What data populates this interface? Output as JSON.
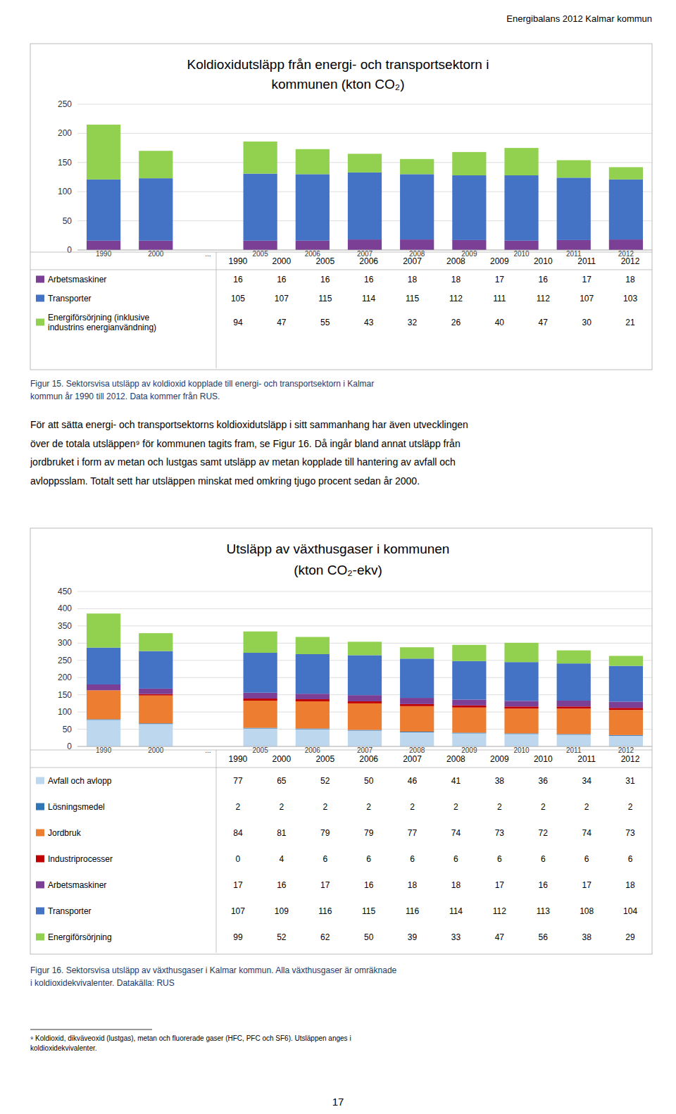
{
  "page_header": "Energibalans 2012 Kalmar kommun",
  "body_text": "För att sätta energi- och transportsektorns koldioxidutsläpp i sitt sammanhang har även utvecklingen\növer de totala utsläppen⁹ för kommunen tagits fram, se Figur 16. Då ingår bland annat utsläpp från\njordbruket i form av metan och lustgas samt utsläpp av metan kopplade till hantering av avfall och\navloppsslam. Totalt sett har utsläppen minskat med omkring tjugo procent sedan år 2000.",
  "footnote": "⁹ Koldioxid, dikväveoxid (lustgas), metan och fluorerade gaser (HFC, PFC och SF6). Utsläppen anges i\nkoldioxidekvivalenter.",
  "page_number": "17",
  "chart_data": [
    {
      "type": "bar",
      "stacked": true,
      "grid": true,
      "legend": "bottom",
      "title": "Koldioxidutsläpp från energi- och transportsektorn i\nkommunen (kton CO₂)",
      "annotations": [
        "Figur 15. Sektorsvisa utsläpp av koldioxid kopplade till energi- och transportsektorn i Kalmar\nkommun år 1990 till 2012. Data kommer från RUS."
      ],
      "categories": [
        "1990",
        "2000",
        "...",
        "2005",
        "2006",
        "2007",
        "2008",
        "2009",
        "2010",
        "2011",
        "2012"
      ],
      "series": [
        {
          "name": "Arbetsmaskiner",
          "color": "#7B3F96",
          "values": [
            16,
            16,
            null,
            16,
            16,
            18,
            18,
            17,
            16,
            17,
            18
          ]
        },
        {
          "name": "Transporter",
          "color": "#4472C4",
          "values": [
            105,
            107,
            null,
            115,
            114,
            115,
            112,
            111,
            112,
            107,
            103
          ]
        },
        {
          "name": "Energiförsörjning (inklusive\nindustrins energianvändning)",
          "color": "#92D050",
          "values": [
            94,
            47,
            null,
            55,
            43,
            32,
            26,
            40,
            47,
            30,
            21
          ]
        }
      ],
      "ylim": [
        0,
        250
      ],
      "yticks": [
        0,
        50,
        100,
        150,
        200,
        250
      ]
    },
    {
      "type": "bar",
      "stacked": true,
      "grid": true,
      "legend": "bottom",
      "title": "Utsläpp av växthusgaser i kommunen\n(kton CO₂-ekv)",
      "annotations": [
        "Figur 16. Sektorsvisa utsläpp av växthusgaser i Kalmar kommun. Alla växthusgaser är omräknade\ni koldioxidekvivalenter. Datakälla: RUS"
      ],
      "categories": [
        "1990",
        "2000",
        "...",
        "2005",
        "2006",
        "2007",
        "2008",
        "2009",
        "2010",
        "2011",
        "2012"
      ],
      "series": [
        {
          "name": "Avfall och avlopp",
          "color": "#BDD7EE",
          "values": [
            77,
            65,
            null,
            52,
            50,
            46,
            41,
            38,
            36,
            34,
            31
          ]
        },
        {
          "name": "Lösningsmedel",
          "color": "#2E75B6",
          "values": [
            2,
            2,
            null,
            2,
            2,
            2,
            2,
            2,
            2,
            2,
            2
          ]
        },
        {
          "name": "Jordbruk",
          "color": "#ED7D31",
          "values": [
            84,
            81,
            null,
            79,
            79,
            77,
            74,
            73,
            72,
            74,
            73
          ]
        },
        {
          "name": "Industriprocesser",
          "color": "#C00000",
          "values": [
            0,
            4,
            null,
            6,
            6,
            6,
            6,
            6,
            6,
            6,
            6
          ]
        },
        {
          "name": "Arbetsmaskiner",
          "color": "#7B3F96",
          "values": [
            17,
            16,
            null,
            17,
            16,
            18,
            18,
            17,
            16,
            17,
            18
          ]
        },
        {
          "name": "Transporter",
          "color": "#4472C4",
          "values": [
            107,
            109,
            null,
            116,
            115,
            116,
            114,
            112,
            113,
            108,
            104
          ]
        },
        {
          "name": "Energiförsörjning",
          "color": "#92D050",
          "values": [
            99,
            52,
            null,
            62,
            50,
            39,
            33,
            47,
            56,
            38,
            29
          ]
        }
      ],
      "ylim": [
        0,
        450
      ],
      "yticks": [
        0,
        50,
        100,
        150,
        200,
        250,
        300,
        350,
        400,
        450
      ]
    }
  ]
}
